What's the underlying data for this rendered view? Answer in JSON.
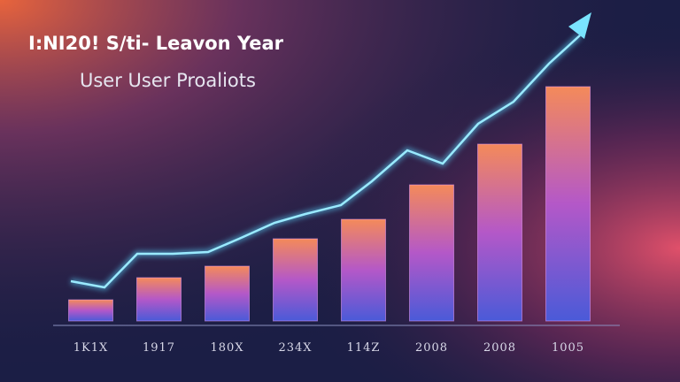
{
  "chart_data": {
    "type": "bar",
    "title": "I:NI20! S/ti- Leavon Year",
    "subtitle": "User User Proaliots",
    "categories": [
      "1K1X",
      "1917",
      "180X",
      "234X",
      "114Z",
      "2008",
      "2008",
      "1005"
    ],
    "values": [
      24,
      49,
      62,
      93,
      115,
      154,
      200,
      265
    ]
  }
}
